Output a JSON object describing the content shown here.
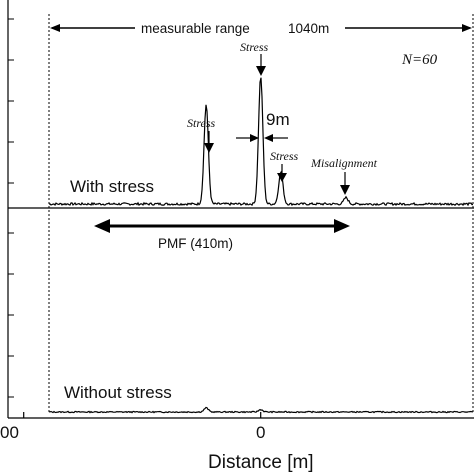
{
  "chart_data": {
    "type": "line",
    "xlabel": "Distance [m]",
    "x_tick_labels": [
      "00",
      "0"
    ],
    "xlim": [
      -1100,
      900
    ],
    "panels": [
      {
        "label": "With stress",
        "ylim": [
          0,
          1
        ],
        "annotation_n": "N=60",
        "range_label": "measurable range",
        "range_value": "1040m",
        "spacing_label": "9m",
        "peak_labels": [
          "Stress",
          "Stress",
          "Stress",
          "Misalignment"
        ],
        "peaks": [
          {
            "x": -230,
            "y": 0.78
          },
          {
            "x": 0,
            "y": 1.0
          },
          {
            "x": 85,
            "y": 0.25
          },
          {
            "x": 360,
            "y": 0.05
          }
        ]
      },
      {
        "label": "Without stress",
        "ylim": [
          0,
          1
        ],
        "pmf_label": "PMF (410m)",
        "peaks": [
          {
            "x": -230,
            "y": 0.07
          },
          {
            "x": 0,
            "y": 0.04
          }
        ]
      }
    ]
  }
}
